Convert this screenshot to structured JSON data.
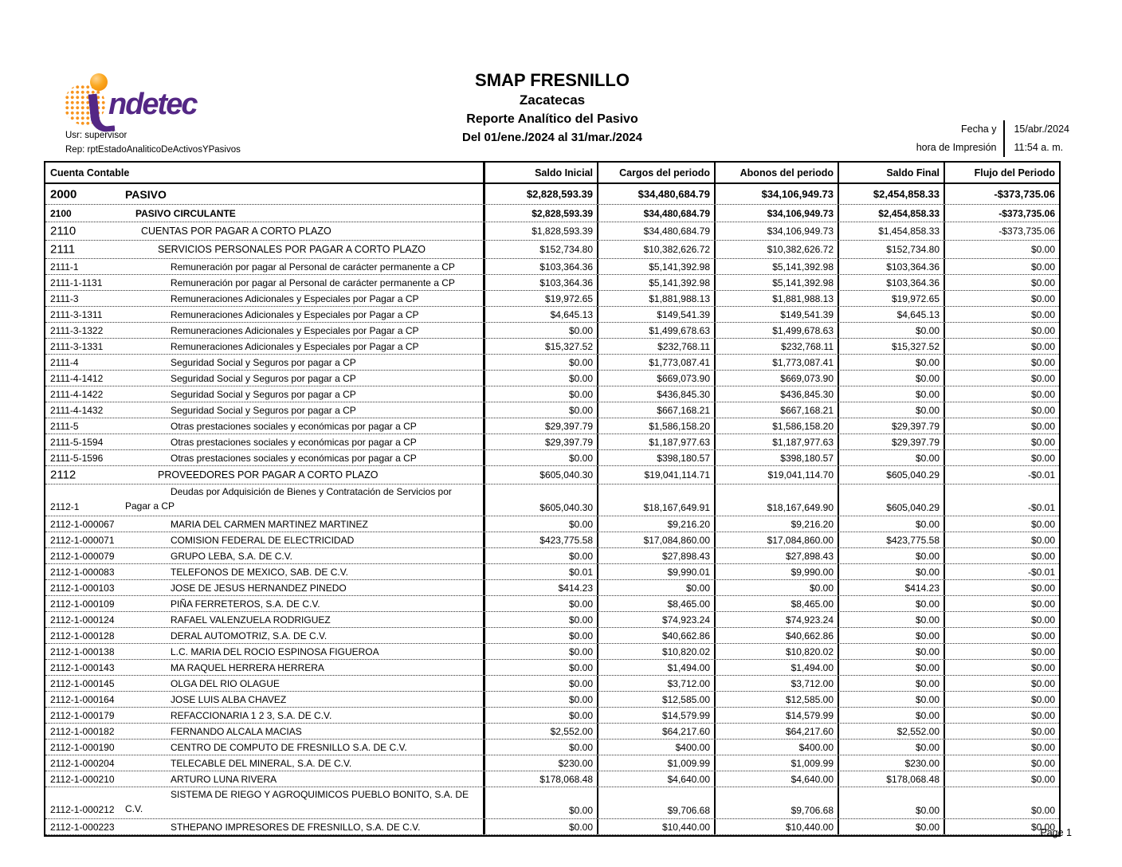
{
  "colors": {
    "indetec_purple": "#542785",
    "indetec_orange": "#F7941E"
  },
  "header": {
    "logo_text": "ndetec",
    "usr_label": "Usr: supervisor",
    "rep_label": "Rep: rptEstadoAnaliticoDeActivosYPasivos",
    "title": "SMAP FRESNILLO",
    "subtitle": "Zacatecas",
    "report_name": "Reporte Analítico del Pasivo",
    "period": "Del 01/ene./2024 al 31/mar./2024",
    "date_label_line1": "Fecha y",
    "date_label_line2": "hora de Impresión",
    "date_value": "15/abr./2024",
    "time_value": "11:54 a. m."
  },
  "table": {
    "columns": [
      "Cuenta Contable",
      "Saldo Inicial",
      "Cargos del periodo",
      "Abonos del periodo",
      "Saldo Final",
      "Flujo del Periodo"
    ],
    "rows": [
      {
        "code": "2000",
        "desc": "PASIVO",
        "level": 0,
        "bold": true,
        "code_large": true,
        "tall": false,
        "values": [
          "$2,828,593.39",
          "$34,480,684.79",
          "$34,106,949.73",
          "$2,454,858.33",
          "-$373,735.06"
        ]
      },
      {
        "code": "2100",
        "desc": "PASIVO CIRCULANTE",
        "level": 1,
        "bold": true,
        "code_large": false,
        "tall": false,
        "values": [
          "$2,828,593.39",
          "$34,480,684.79",
          "$34,106,949.73",
          "$2,454,858.33",
          "-$373,735.06"
        ]
      },
      {
        "code": "2110",
        "desc": "CUENTAS POR PAGAR A CORTO PLAZO",
        "level": 2,
        "bold": false,
        "code_large": true,
        "tall": false,
        "values": [
          "$1,828,593.39",
          "$34,480,684.79",
          "$34,106,949.73",
          "$1,454,858.33",
          "-$373,735.06"
        ]
      },
      {
        "code": "2111",
        "desc": "SERVICIOS PERSONALES POR PAGAR A CORTO PLAZO",
        "level": 3,
        "bold": false,
        "code_large": true,
        "tall": false,
        "values": [
          "$152,734.80",
          "$10,382,626.72",
          "$10,382,626.72",
          "$152,734.80",
          "$0.00"
        ]
      },
      {
        "code": "2111-1",
        "desc": "Remuneración por pagar al Personal de carácter permanente a CP",
        "level": 4,
        "bold": false,
        "code_large": false,
        "tall": false,
        "values": [
          "$103,364.36",
          "$5,141,392.98",
          "$5,141,392.98",
          "$103,364.36",
          "$0.00"
        ]
      },
      {
        "code": "2111-1-1131",
        "desc": "Remuneración por pagar al Personal de carácter permanente a CP",
        "level": 4,
        "bold": false,
        "code_large": false,
        "tall": false,
        "values": [
          "$103,364.36",
          "$5,141,392.98",
          "$5,141,392.98",
          "$103,364.36",
          "$0.00"
        ]
      },
      {
        "code": "2111-3",
        "desc": "Remuneraciones Adicionales y Especiales por Pagar a CP",
        "level": 4,
        "bold": false,
        "code_large": false,
        "tall": false,
        "values": [
          "$19,972.65",
          "$1,881,988.13",
          "$1,881,988.13",
          "$19,972.65",
          "$0.00"
        ]
      },
      {
        "code": "2111-3-1311",
        "desc": "Remuneraciones Adicionales y Especiales por Pagar a CP",
        "level": 4,
        "bold": false,
        "code_large": false,
        "tall": false,
        "values": [
          "$4,645.13",
          "$149,541.39",
          "$149,541.39",
          "$4,645.13",
          "$0.00"
        ]
      },
      {
        "code": "2111-3-1322",
        "desc": "Remuneraciones Adicionales y Especiales por Pagar a CP",
        "level": 4,
        "bold": false,
        "code_large": false,
        "tall": false,
        "values": [
          "$0.00",
          "$1,499,678.63",
          "$1,499,678.63",
          "$0.00",
          "$0.00"
        ]
      },
      {
        "code": "2111-3-1331",
        "desc": "Remuneraciones Adicionales y Especiales por Pagar a CP",
        "level": 4,
        "bold": false,
        "code_large": false,
        "tall": false,
        "values": [
          "$15,327.52",
          "$232,768.11",
          "$232,768.11",
          "$15,327.52",
          "$0.00"
        ]
      },
      {
        "code": "2111-4",
        "desc": "Seguridad Social y Seguros por pagar a CP",
        "level": 4,
        "bold": false,
        "code_large": false,
        "tall": false,
        "values": [
          "$0.00",
          "$1,773,087.41",
          "$1,773,087.41",
          "$0.00",
          "$0.00"
        ]
      },
      {
        "code": "2111-4-1412",
        "desc": "Seguridad Social y Seguros por pagar a CP",
        "level": 4,
        "bold": false,
        "code_large": false,
        "tall": false,
        "values": [
          "$0.00",
          "$669,073.90",
          "$669,073.90",
          "$0.00",
          "$0.00"
        ]
      },
      {
        "code": "2111-4-1422",
        "desc": "Seguridad Social y Seguros por pagar a CP",
        "level": 4,
        "bold": false,
        "code_large": false,
        "tall": false,
        "values": [
          "$0.00",
          "$436,845.30",
          "$436,845.30",
          "$0.00",
          "$0.00"
        ]
      },
      {
        "code": "2111-4-1432",
        "desc": "Seguridad Social y Seguros por pagar a CP",
        "level": 4,
        "bold": false,
        "code_large": false,
        "tall": false,
        "values": [
          "$0.00",
          "$667,168.21",
          "$667,168.21",
          "$0.00",
          "$0.00"
        ]
      },
      {
        "code": "2111-5",
        "desc": "Otras prestaciones sociales y económicas por pagar a CP",
        "level": 4,
        "bold": false,
        "code_large": false,
        "tall": false,
        "values": [
          "$29,397.79",
          "$1,586,158.20",
          "$1,586,158.20",
          "$29,397.79",
          "$0.00"
        ]
      },
      {
        "code": "2111-5-1594",
        "desc": "Otras prestaciones sociales y económicas por pagar a CP",
        "level": 4,
        "bold": false,
        "code_large": false,
        "tall": false,
        "values": [
          "$29,397.79",
          "$1,187,977.63",
          "$1,187,977.63",
          "$29,397.79",
          "$0.00"
        ]
      },
      {
        "code": "2111-5-1596",
        "desc": "Otras prestaciones sociales y económicas por pagar a CP",
        "level": 4,
        "bold": false,
        "code_large": false,
        "tall": false,
        "values": [
          "$0.00",
          "$398,180.57",
          "$398,180.57",
          "$0.00",
          "$0.00"
        ]
      },
      {
        "code": "2112",
        "desc": "PROVEEDORES POR PAGAR A CORTO PLAZO",
        "level": 3,
        "bold": false,
        "code_large": true,
        "tall": false,
        "values": [
          "$605,040.30",
          "$19,041,114.71",
          "$19,041,114.70",
          "$605,040.29",
          "-$0.01"
        ]
      },
      {
        "code": "2112-1",
        "desc": "Deudas por Adquisición de Bienes y Contratación de Servicios por Pagar a CP",
        "level": 4,
        "bold": false,
        "code_large": false,
        "tall": true,
        "values": [
          "$605,040.30",
          "$18,167,649.91",
          "$18,167,649.90",
          "$605,040.29",
          "-$0.01"
        ]
      },
      {
        "code": "2112-1-000067",
        "desc": "MARIA DEL CARMEN MARTINEZ MARTINEZ",
        "level": 4,
        "bold": false,
        "code_large": false,
        "tall": false,
        "values": [
          "$0.00",
          "$9,216.20",
          "$9,216.20",
          "$0.00",
          "$0.00"
        ]
      },
      {
        "code": "2112-1-000071",
        "desc": "COMISION FEDERAL DE ELECTRICIDAD",
        "level": 4,
        "bold": false,
        "code_large": false,
        "tall": false,
        "values": [
          "$423,775.58",
          "$17,084,860.00",
          "$17,084,860.00",
          "$423,775.58",
          "$0.00"
        ]
      },
      {
        "code": "2112-1-000079",
        "desc": "GRUPO LEBA, S.A. DE C.V.",
        "level": 4,
        "bold": false,
        "code_large": false,
        "tall": false,
        "values": [
          "$0.00",
          "$27,898.43",
          "$27,898.43",
          "$0.00",
          "$0.00"
        ]
      },
      {
        "code": "2112-1-000083",
        "desc": "TELEFONOS DE MEXICO, SAB. DE C.V.",
        "level": 4,
        "bold": false,
        "code_large": false,
        "tall": false,
        "values": [
          "$0.01",
          "$9,990.01",
          "$9,990.00",
          "$0.00",
          "-$0.01"
        ]
      },
      {
        "code": "2112-1-000103",
        "desc": "JOSE DE JESUS HERNANDEZ PINEDO",
        "level": 4,
        "bold": false,
        "code_large": false,
        "tall": false,
        "values": [
          "$414.23",
          "$0.00",
          "$0.00",
          "$414.23",
          "$0.00"
        ]
      },
      {
        "code": "2112-1-000109",
        "desc": "PIÑA FERRETEROS, S.A. DE C.V.",
        "level": 4,
        "bold": false,
        "code_large": false,
        "tall": false,
        "values": [
          "$0.00",
          "$8,465.00",
          "$8,465.00",
          "$0.00",
          "$0.00"
        ]
      },
      {
        "code": "2112-1-000124",
        "desc": "RAFAEL VALENZUELA RODRIGUEZ",
        "level": 4,
        "bold": false,
        "code_large": false,
        "tall": false,
        "values": [
          "$0.00",
          "$74,923.24",
          "$74,923.24",
          "$0.00",
          "$0.00"
        ]
      },
      {
        "code": "2112-1-000128",
        "desc": "DERAL AUTOMOTRIZ, S.A. DE C.V.",
        "level": 4,
        "bold": false,
        "code_large": false,
        "tall": false,
        "values": [
          "$0.00",
          "$40,662.86",
          "$40,662.86",
          "$0.00",
          "$0.00"
        ]
      },
      {
        "code": "2112-1-000138",
        "desc": "L.C. MARIA DEL ROCIO ESPINOSA FIGUEROA",
        "level": 4,
        "bold": false,
        "code_large": false,
        "tall": false,
        "values": [
          "$0.00",
          "$10,820.02",
          "$10,820.02",
          "$0.00",
          "$0.00"
        ]
      },
      {
        "code": "2112-1-000143",
        "desc": "MA RAQUEL HERRERA HERRERA",
        "level": 4,
        "bold": false,
        "code_large": false,
        "tall": false,
        "values": [
          "$0.00",
          "$1,494.00",
          "$1,494.00",
          "$0.00",
          "$0.00"
        ]
      },
      {
        "code": "2112-1-000145",
        "desc": "OLGA DEL RIO OLAGUE",
        "level": 4,
        "bold": false,
        "code_large": false,
        "tall": false,
        "values": [
          "$0.00",
          "$3,712.00",
          "$3,712.00",
          "$0.00",
          "$0.00"
        ]
      },
      {
        "code": "2112-1-000164",
        "desc": "JOSE LUIS ALBA CHAVEZ",
        "level": 4,
        "bold": false,
        "code_large": false,
        "tall": false,
        "values": [
          "$0.00",
          "$12,585.00",
          "$12,585.00",
          "$0.00",
          "$0.00"
        ]
      },
      {
        "code": "2112-1-000179",
        "desc": "REFACCIONARIA 1 2 3, S.A. DE C.V.",
        "level": 4,
        "bold": false,
        "code_large": false,
        "tall": false,
        "values": [
          "$0.00",
          "$14,579.99",
          "$14,579.99",
          "$0.00",
          "$0.00"
        ]
      },
      {
        "code": "2112-1-000182",
        "desc": "FERNANDO ALCALA MACIAS",
        "level": 4,
        "bold": false,
        "code_large": false,
        "tall": false,
        "values": [
          "$2,552.00",
          "$64,217.60",
          "$64,217.60",
          "$2,552.00",
          "$0.00"
        ]
      },
      {
        "code": "2112-1-000190",
        "desc": "CENTRO DE COMPUTO DE FRESNILLO S.A. DE C.V.",
        "level": 4,
        "bold": false,
        "code_large": false,
        "tall": false,
        "values": [
          "$0.00",
          "$400.00",
          "$400.00",
          "$0.00",
          "$0.00"
        ]
      },
      {
        "code": "2112-1-000204",
        "desc": "TELECABLE DEL MINERAL, S.A. DE C.V.",
        "level": 4,
        "bold": false,
        "code_large": false,
        "tall": false,
        "values": [
          "$230.00",
          "$1,009.99",
          "$1,009.99",
          "$230.00",
          "$0.00"
        ]
      },
      {
        "code": "2112-1-000210",
        "desc": "ARTURO LUNA RIVERA",
        "level": 4,
        "bold": false,
        "code_large": false,
        "tall": false,
        "values": [
          "$178,068.48",
          "$4,640.00",
          "$4,640.00",
          "$178,068.48",
          "$0.00"
        ]
      },
      {
        "code": "2112-1-000212",
        "desc": "SISTEMA DE RIEGO Y AGROQUIMICOS PUEBLO BONITO, S.A. DE C.V.",
        "level": 4,
        "bold": false,
        "code_large": false,
        "tall": true,
        "values": [
          "$0.00",
          "$9,706.68",
          "$9,706.68",
          "$0.00",
          "$0.00"
        ]
      },
      {
        "code": "2112-1-000223",
        "desc": "STHEPANO IMPRESORES DE FRESNILLO, S.A. DE C.V.",
        "level": 4,
        "bold": false,
        "code_large": false,
        "tall": false,
        "values": [
          "$0.00",
          "$10,440.00",
          "$10,440.00",
          "$0.00",
          "$0.00"
        ]
      }
    ]
  },
  "footer": {
    "page_label": "Page 1"
  }
}
